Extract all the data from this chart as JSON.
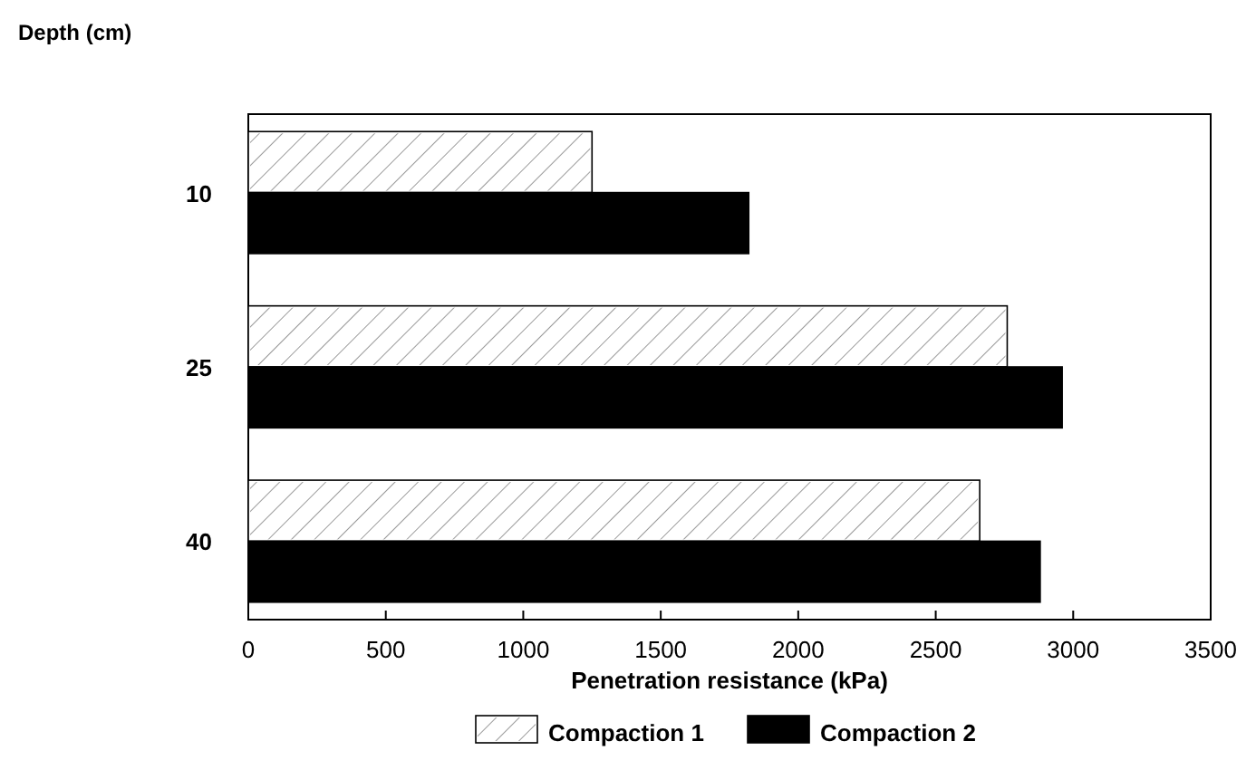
{
  "chart_data": {
    "type": "bar",
    "orientation": "horizontal",
    "ylabel": "Depth (cm)",
    "xlabel": "Penetration resistance (kPa)",
    "categories": [
      "10",
      "25",
      "40"
    ],
    "series": [
      {
        "name": "Compaction 1",
        "color": "#ffffff",
        "values": [
          1250,
          2760,
          2660
        ]
      },
      {
        "name": "Compaction 2",
        "color": "#000000",
        "values": [
          1820,
          2960,
          2880
        ]
      }
    ],
    "xlim": [
      0,
      3500
    ],
    "xticks": [
      0,
      500,
      1000,
      1500,
      2000,
      2500,
      3000,
      3500
    ],
    "grid": false,
    "legend": "bottom"
  }
}
